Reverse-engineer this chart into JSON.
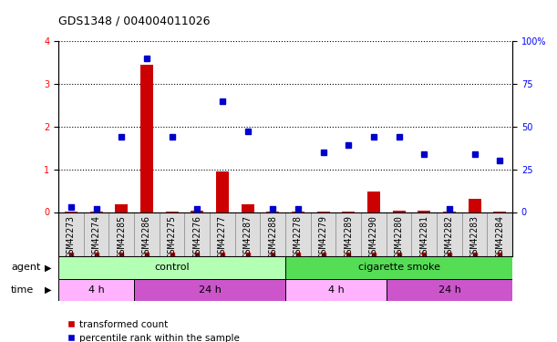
{
  "title": "GDS1348 / 004004011026",
  "samples": [
    "GSM42273",
    "GSM42274",
    "GSM42285",
    "GSM42286",
    "GSM42275",
    "GSM42276",
    "GSM42277",
    "GSM42287",
    "GSM42288",
    "GSM42278",
    "GSM42279",
    "GSM42289",
    "GSM42290",
    "GSM42280",
    "GSM42281",
    "GSM42282",
    "GSM42283",
    "GSM42284"
  ],
  "red_values": [
    0.02,
    0.02,
    0.18,
    3.45,
    0.02,
    0.04,
    0.95,
    0.18,
    0.02,
    0.02,
    0.02,
    0.02,
    0.47,
    0.04,
    0.04,
    0.02,
    0.3,
    0.02
  ],
  "blue_values": [
    3,
    2,
    44,
    90,
    44,
    2,
    65,
    47,
    2,
    2,
    35,
    39,
    44,
    44,
    34,
    2,
    34,
    30
  ],
  "agent_groups": [
    {
      "label": "control",
      "start": 0,
      "end": 9,
      "color": "#b3ffb3"
    },
    {
      "label": "cigarette smoke",
      "start": 9,
      "end": 18,
      "color": "#55dd55"
    }
  ],
  "time_groups": [
    {
      "label": "4 h",
      "start": 0,
      "end": 3,
      "color": "#ffb3ff"
    },
    {
      "label": "24 h",
      "start": 3,
      "end": 9,
      "color": "#cc55cc"
    },
    {
      "label": "4 h",
      "start": 9,
      "end": 13,
      "color": "#ffb3ff"
    },
    {
      "label": "24 h",
      "start": 13,
      "end": 18,
      "color": "#cc55cc"
    }
  ],
  "ylim_left": [
    0,
    4
  ],
  "ylim_right": [
    0,
    100
  ],
  "yticks_left": [
    0,
    1,
    2,
    3,
    4
  ],
  "yticks_right": [
    0,
    25,
    50,
    75,
    100
  ],
  "red_color": "#cc0000",
  "blue_color": "#0000cc",
  "bar_width": 0.5,
  "blue_marker_size": 5,
  "title_fontsize": 9,
  "tick_fontsize": 7,
  "label_fontsize": 8
}
